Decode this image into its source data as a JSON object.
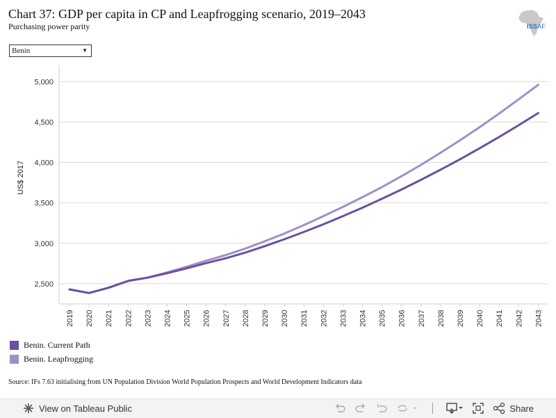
{
  "header": {
    "title": "Chart 37: GDP per capita in CP and Leapfrogging scenario, 2019–2043",
    "subtitle": "Purchasing power parity",
    "logo_text": "ISS",
    "logo_suffix": "AF"
  },
  "filter": {
    "selected": "Benin"
  },
  "chart_data": {
    "type": "line",
    "ylabel": "US$ 2017",
    "ylim": [
      2250,
      5200
    ],
    "yticks": [
      2500,
      3000,
      3500,
      4000,
      4500,
      5000
    ],
    "ytick_labels": [
      "2,500",
      "3,000",
      "3,500",
      "4,000",
      "4,500",
      "5,000"
    ],
    "grid": true,
    "x": [
      "2019",
      "2020",
      "2021",
      "2022",
      "2023",
      "2024",
      "2025",
      "2026",
      "2027",
      "2028",
      "2029",
      "2030",
      "2031",
      "2032",
      "2033",
      "2034",
      "2035",
      "2036",
      "2037",
      "2038",
      "2039",
      "2040",
      "2041",
      "2042",
      "2043"
    ],
    "series": [
      {
        "name": "Benin. Current Path",
        "color": "#6b4fa0",
        "values": [
          2430,
          2385,
          2450,
          2535,
          2575,
          2630,
          2690,
          2755,
          2815,
          2885,
          2965,
          3050,
          3140,
          3235,
          3335,
          3440,
          3550,
          3665,
          3785,
          3910,
          4040,
          4175,
          4315,
          4460,
          4610
        ]
      },
      {
        "name": "Benin. Leapfrogging",
        "color": "#9d8fca",
        "values": [
          2430,
          2385,
          2450,
          2535,
          2575,
          2640,
          2710,
          2785,
          2855,
          2935,
          3025,
          3120,
          3225,
          3335,
          3450,
          3570,
          3695,
          3830,
          3970,
          4120,
          4275,
          4435,
          4605,
          4780,
          4960
        ]
      }
    ]
  },
  "source": "Source: IFs 7.63 initialising from UN Population Division World Population Prospects and World Development Indicators data",
  "toolbar": {
    "view_label": "View on Tableau Public",
    "share_label": "Share"
  }
}
